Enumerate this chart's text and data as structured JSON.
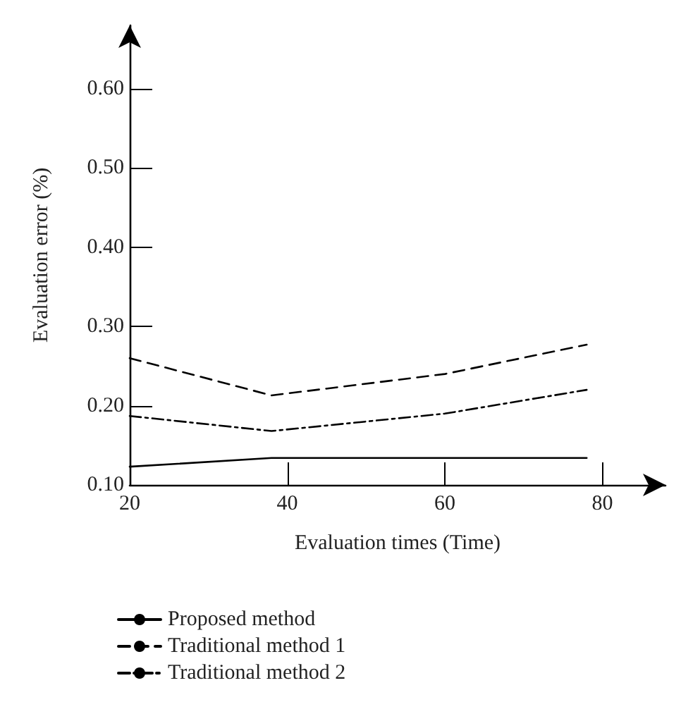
{
  "chart_data": {
    "type": "line",
    "xlabel": "Evaluation times (Time)",
    "ylabel": "Evaluation error (%)",
    "xlim": [
      20,
      88
    ],
    "xticks": [
      20,
      40,
      60,
      80
    ],
    "ylim": [
      0.1,
      0.68
    ],
    "yticks": [
      {
        "value": 0.1,
        "label": "0.10"
      },
      {
        "value": 0.2,
        "label": "0.20"
      },
      {
        "value": 0.3,
        "label": "0.30"
      },
      {
        "value": 0.4,
        "label": "0.40"
      },
      {
        "value": 0.5,
        "label": "0.50"
      },
      {
        "value": 0.6,
        "label": "0.60"
      }
    ],
    "legend": "bottom",
    "grid": false,
    "marker": "none",
    "series": [
      {
        "name": "Proposed method",
        "color": "#000000",
        "line_style": "solid",
        "x": [
          20,
          38,
          78
        ],
        "values": [
          0.123,
          0.134,
          0.134
        ]
      },
      {
        "name": "Traditional method 1",
        "color": "#000000",
        "line_style": "dashed",
        "x": [
          20,
          38,
          60,
          78
        ],
        "values": [
          0.26,
          0.213,
          0.24,
          0.277
        ]
      },
      {
        "name": "Traditional method 2",
        "color": "#000000",
        "line_style": "dashdot",
        "x": [
          20,
          38,
          60,
          78
        ],
        "values": [
          0.187,
          0.168,
          0.19,
          0.22
        ]
      }
    ]
  }
}
